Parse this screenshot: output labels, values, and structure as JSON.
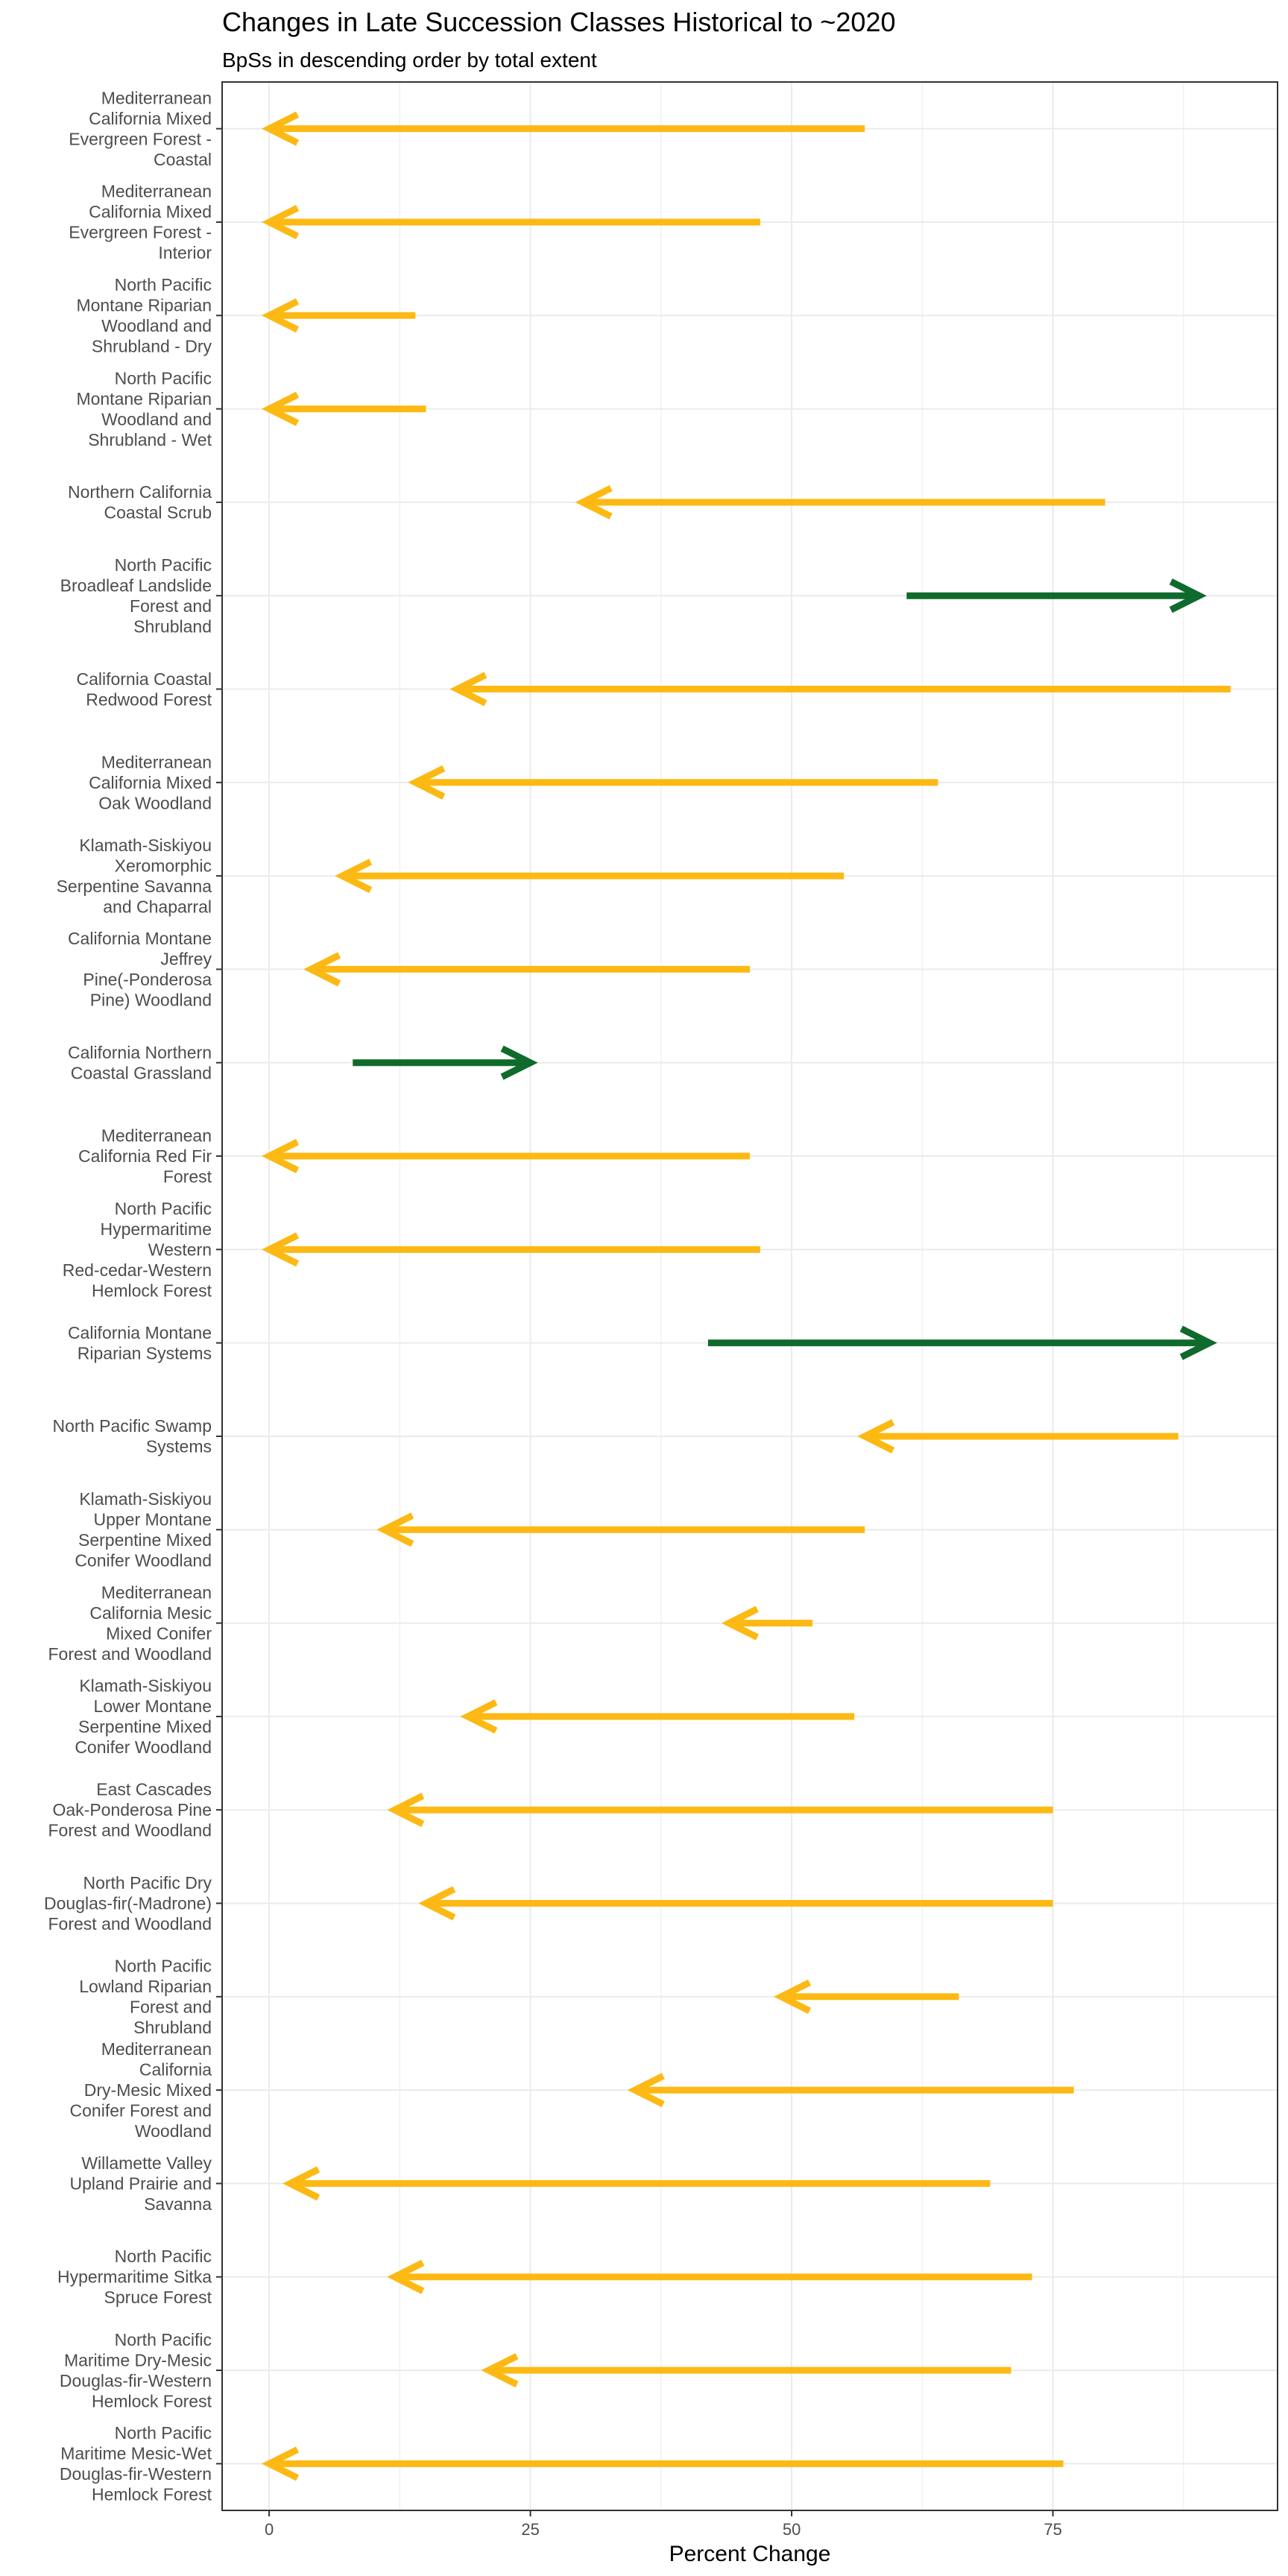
{
  "chart_data": {
    "type": "arrow",
    "title": "Changes in Late Succession Classes Historical to ~2020",
    "subtitle": "BpSs in descending order by total extent",
    "xlabel": "Percent Change",
    "ylabel": "",
    "xlim": [
      -4.5,
      96.5
    ],
    "xticks": [
      0,
      25,
      50,
      75
    ],
    "grid": true,
    "colors": {
      "decrease": "#FDB913",
      "increase": "#0F6B2D",
      "grid": "#ebebeb",
      "border": "#333333"
    },
    "rows": [
      {
        "label": "Mediterranean California Mixed Evergreen Forest - Coastal",
        "lines": [
          "Mediterranean",
          "California Mixed",
          "Evergreen Forest -",
          "Coastal"
        ],
        "from": 57,
        "to": 0
      },
      {
        "label": "Mediterranean California Mixed Evergreen Forest - Interior",
        "lines": [
          "Mediterranean",
          "California Mixed",
          "Evergreen Forest -",
          "Interior"
        ],
        "from": 47,
        "to": 0
      },
      {
        "label": "North Pacific Montane Riparian Woodland and Shrubland - Dry",
        "lines": [
          "North Pacific",
          "Montane Riparian",
          "Woodland and",
          "Shrubland - Dry"
        ],
        "from": 14,
        "to": 0
      },
      {
        "label": "North Pacific Montane Riparian Woodland and Shrubland - Wet",
        "lines": [
          "North Pacific",
          "Montane Riparian",
          "Woodland and",
          "Shrubland - Wet"
        ],
        "from": 15,
        "to": 0
      },
      {
        "label": "Northern California Coastal Scrub",
        "lines": [
          "Northern California",
          "Coastal Scrub"
        ],
        "from": 80,
        "to": 30
      },
      {
        "label": "North Pacific Broadleaf Landslide Forest and Shrubland",
        "lines": [
          "North Pacific",
          "Broadleaf Landslide",
          "Forest and",
          "Shrubland"
        ],
        "from": 61,
        "to": 89
      },
      {
        "label": "California Coastal Redwood Forest",
        "lines": [
          "California Coastal",
          "Redwood Forest"
        ],
        "from": 92,
        "to": 18
      },
      {
        "label": "Mediterranean California Mixed Oak Woodland",
        "lines": [
          "Mediterranean",
          "California Mixed",
          "Oak Woodland"
        ],
        "from": 64,
        "to": 14
      },
      {
        "label": "Klamath-Siskiyou Xeromorphic Serpentine Savanna and Chaparral",
        "lines": [
          "Klamath-Siskiyou",
          "Xeromorphic",
          "Serpentine Savanna",
          "and Chaparral"
        ],
        "from": 55,
        "to": 7
      },
      {
        "label": "California Montane Jeffrey Pine(-Ponderosa Pine) Woodland",
        "lines": [
          "California Montane",
          "Jeffrey",
          "Pine(-Ponderosa",
          "Pine) Woodland"
        ],
        "from": 46,
        "to": 4
      },
      {
        "label": "California Northern Coastal Grassland",
        "lines": [
          "California Northern",
          "Coastal Grassland"
        ],
        "from": 8,
        "to": 25
      },
      {
        "label": "Mediterranean California Red Fir Forest",
        "lines": [
          "Mediterranean",
          "California Red Fir",
          "Forest"
        ],
        "from": 46,
        "to": 0
      },
      {
        "label": "North Pacific Hypermaritime Western Red-cedar-Western Hemlock Forest",
        "lines": [
          "North Pacific",
          "Hypermaritime",
          "Western",
          "Red-cedar-Western",
          "Hemlock Forest"
        ],
        "from": 47,
        "to": 0
      },
      {
        "label": "California Montane Riparian Systems",
        "lines": [
          "California Montane",
          "Riparian Systems"
        ],
        "from": 42,
        "to": 90
      },
      {
        "label": "North Pacific Swamp Systems",
        "lines": [
          "North Pacific Swamp",
          "Systems"
        ],
        "from": 87,
        "to": 57
      },
      {
        "label": "Klamath-Siskiyou Upper Montane Serpentine Mixed Conifer Woodland",
        "lines": [
          "Klamath-Siskiyou",
          "Upper Montane",
          "Serpentine Mixed",
          "Conifer Woodland"
        ],
        "from": 57,
        "to": 11
      },
      {
        "label": "Mediterranean California Mesic Mixed Conifer Forest and Woodland",
        "lines": [
          "Mediterranean",
          "California Mesic",
          "Mixed Conifer",
          "Forest and Woodland"
        ],
        "from": 52,
        "to": 44
      },
      {
        "label": "Klamath-Siskiyou Lower Montane Serpentine Mixed Conifer Woodland",
        "lines": [
          "Klamath-Siskiyou",
          "Lower Montane",
          "Serpentine Mixed",
          "Conifer Woodland"
        ],
        "from": 56,
        "to": 19
      },
      {
        "label": "East Cascades Oak-Ponderosa Pine Forest and Woodland",
        "lines": [
          "East Cascades",
          "Oak-Ponderosa Pine",
          "Forest and Woodland"
        ],
        "from": 75,
        "to": 12
      },
      {
        "label": "North Pacific Dry Douglas-fir(-Madrone) Forest and Woodland",
        "lines": [
          "North Pacific Dry",
          "Douglas-fir(-Madrone)",
          "Forest and Woodland"
        ],
        "from": 75,
        "to": 15
      },
      {
        "label": "North Pacific Lowland Riparian Forest and Shrubland",
        "lines": [
          "North Pacific",
          "Lowland Riparian",
          "Forest and",
          "Shrubland"
        ],
        "from": 66,
        "to": 49
      },
      {
        "label": "Mediterranean California Dry-Mesic Mixed Conifer Forest and Woodland",
        "lines": [
          "Mediterranean",
          "California",
          "Dry-Mesic Mixed",
          "Conifer Forest and",
          "Woodland"
        ],
        "from": 77,
        "to": 35
      },
      {
        "label": "Willamette Valley Upland Prairie and Savanna",
        "lines": [
          "Willamette Valley",
          "Upland Prairie and",
          "Savanna"
        ],
        "from": 69,
        "to": 2
      },
      {
        "label": "North Pacific Hypermaritime Sitka Spruce Forest",
        "lines": [
          "North Pacific",
          "Hypermaritime Sitka",
          "Spruce Forest"
        ],
        "from": 73,
        "to": 12
      },
      {
        "label": "North Pacific Maritime Dry-Mesic Douglas-fir-Western Hemlock Forest",
        "lines": [
          "North Pacific",
          "Maritime Dry-Mesic",
          "Douglas-fir-Western",
          "Hemlock Forest"
        ],
        "from": 71,
        "to": 21
      },
      {
        "label": "North Pacific Maritime Mesic-Wet Douglas-fir-Western Hemlock Forest",
        "lines": [
          "North Pacific",
          "Maritime Mesic-Wet",
          "Douglas-fir-Western",
          "Hemlock Forest"
        ],
        "from": 76,
        "to": 0
      }
    ]
  }
}
